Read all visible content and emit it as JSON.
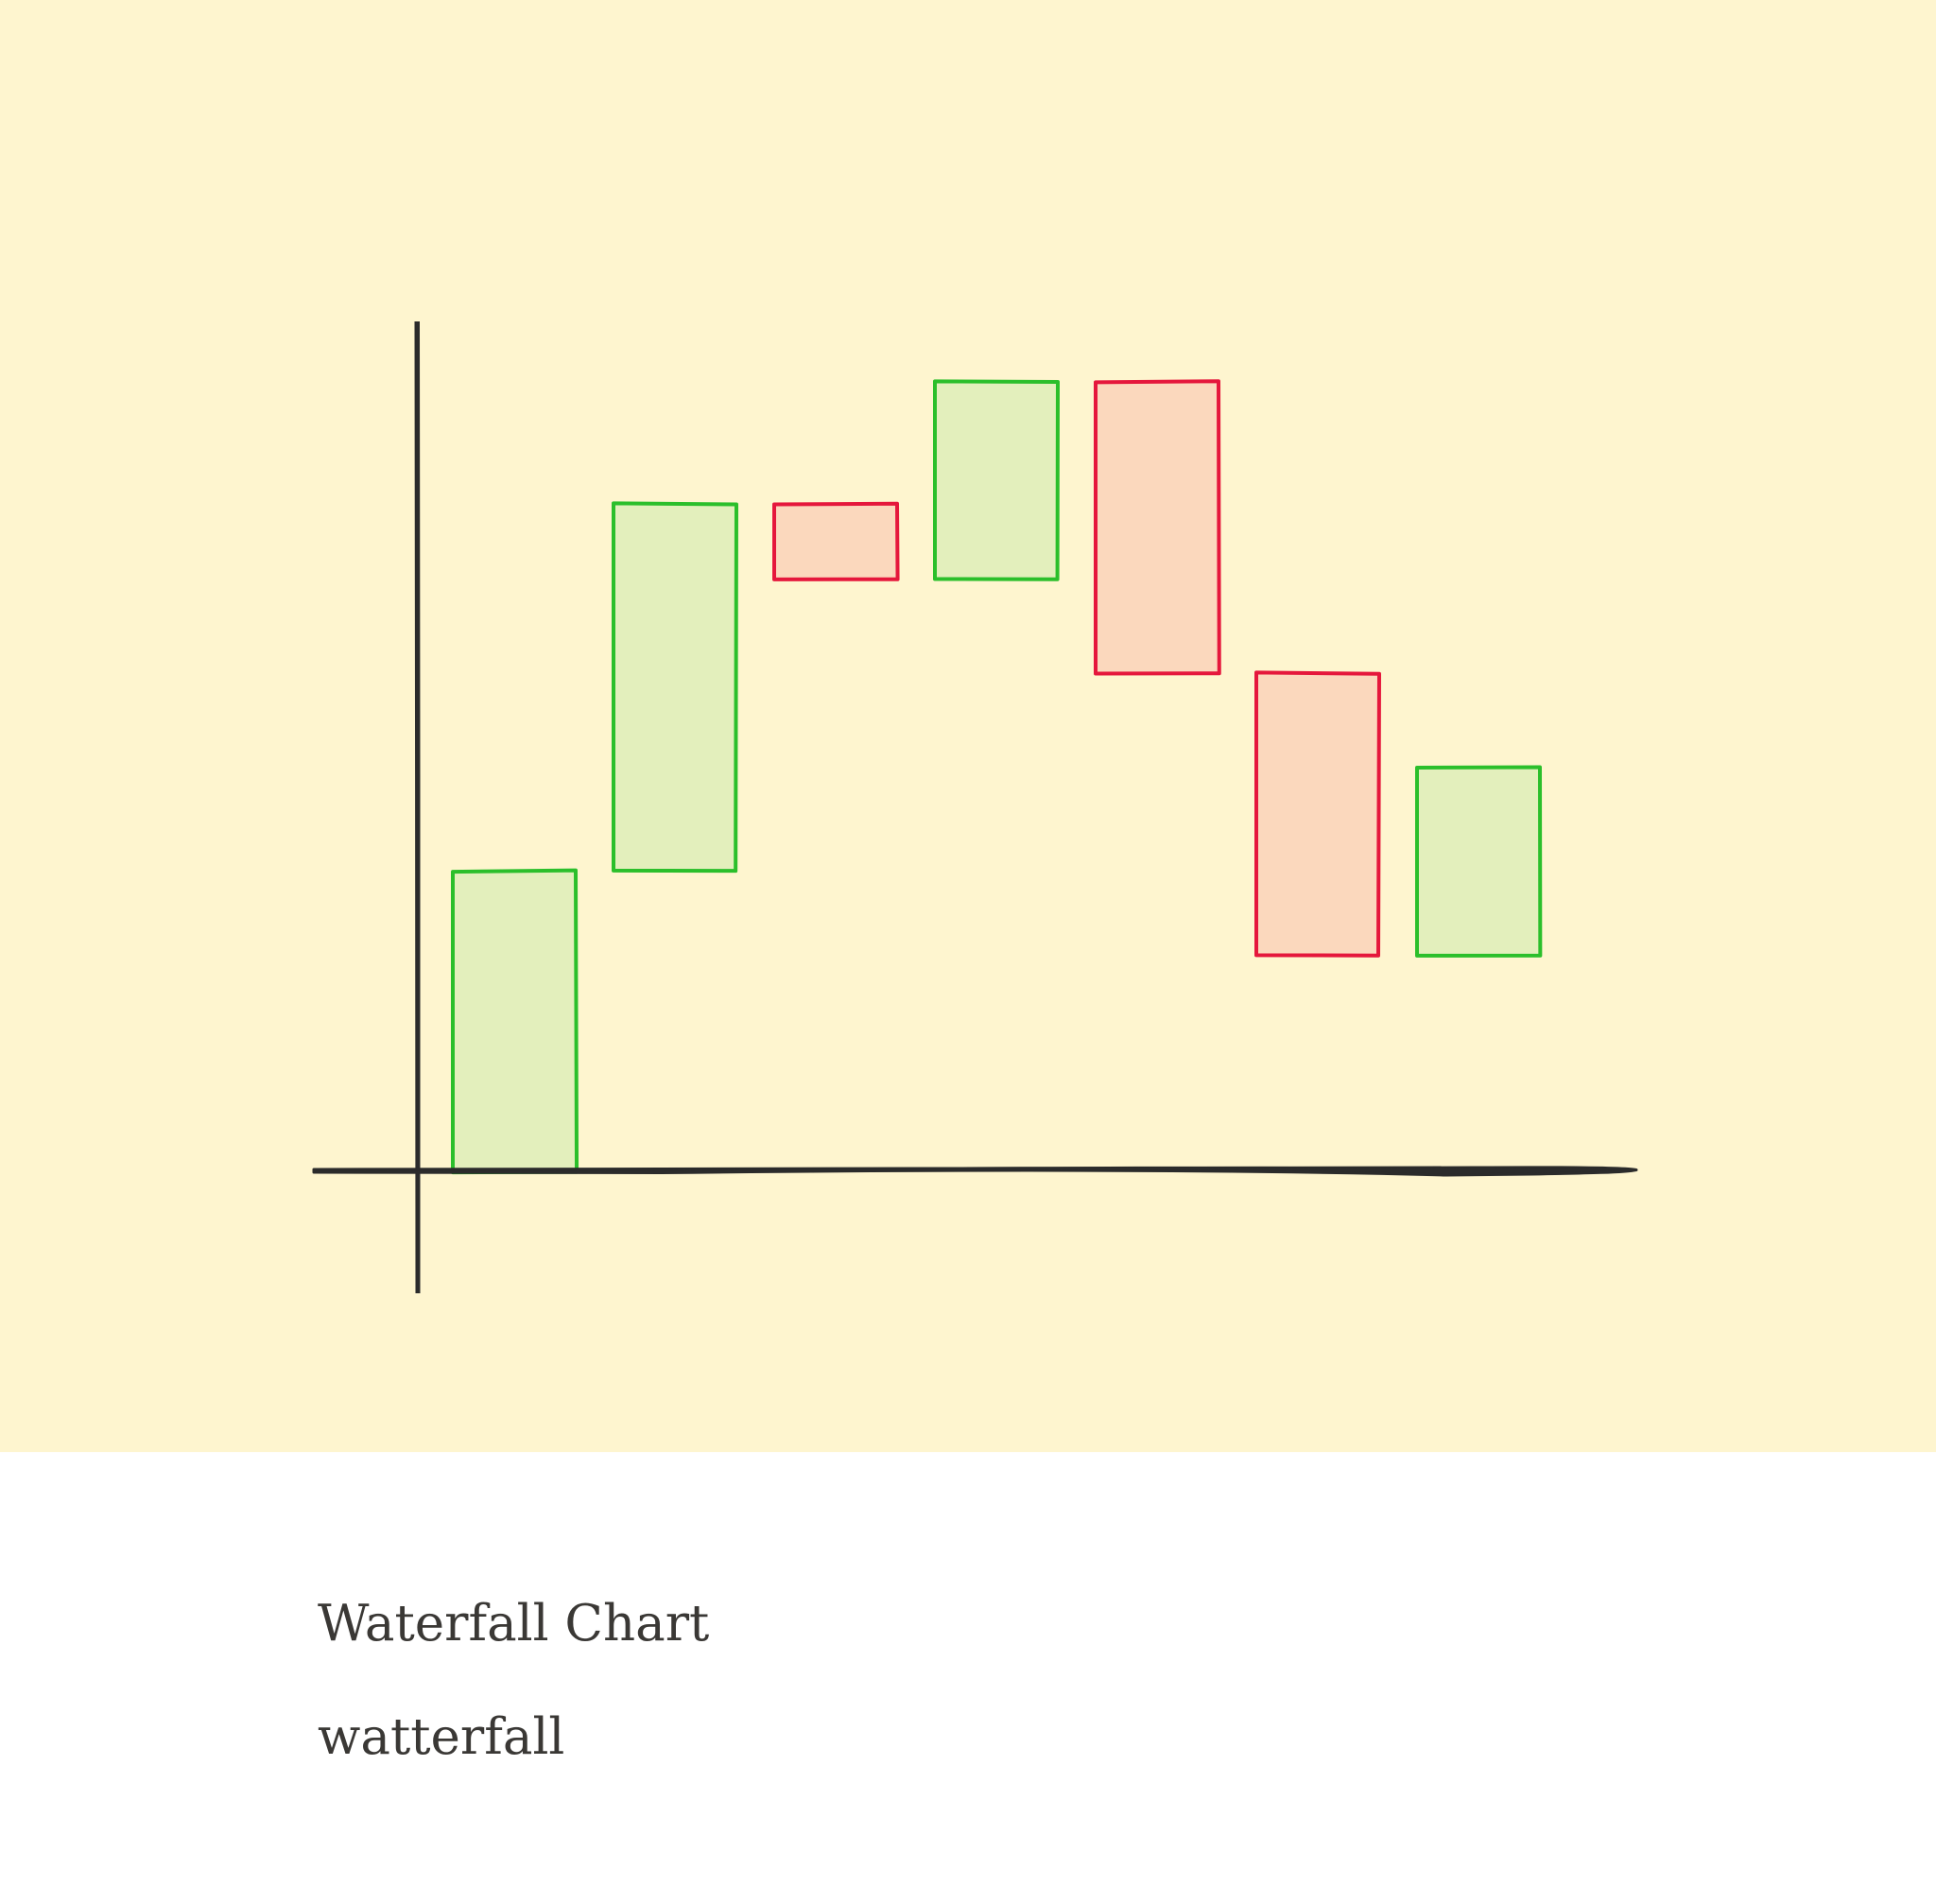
{
  "background_color": "#fef5cf",
  "chart_data": {
    "type": "waterfall",
    "title": "",
    "xlabel": "",
    "ylabel": "",
    "steps": [
      {
        "start": 0,
        "end": 3.2
      },
      {
        "start": 3.2,
        "end": 7.1
      },
      {
        "start": 7.1,
        "end": 6.3
      },
      {
        "start": 6.3,
        "end": 8.4
      },
      {
        "start": 8.4,
        "end": 5.3
      },
      {
        "start": 5.3,
        "end": 2.3
      },
      {
        "start": 2.3,
        "end": 4.3
      }
    ],
    "ylim": [
      -1.3,
      9.0
    ],
    "colors": {
      "increase_stroke": "#2bbf2b",
      "increase_fill": "#e3efbc",
      "decrease_stroke": "#e5173c",
      "decrease_fill": "#fbd8bd",
      "axis": "#2b2b2b"
    }
  },
  "caption": {
    "title": "Waterfall Chart",
    "subtitle": "watterfall"
  }
}
